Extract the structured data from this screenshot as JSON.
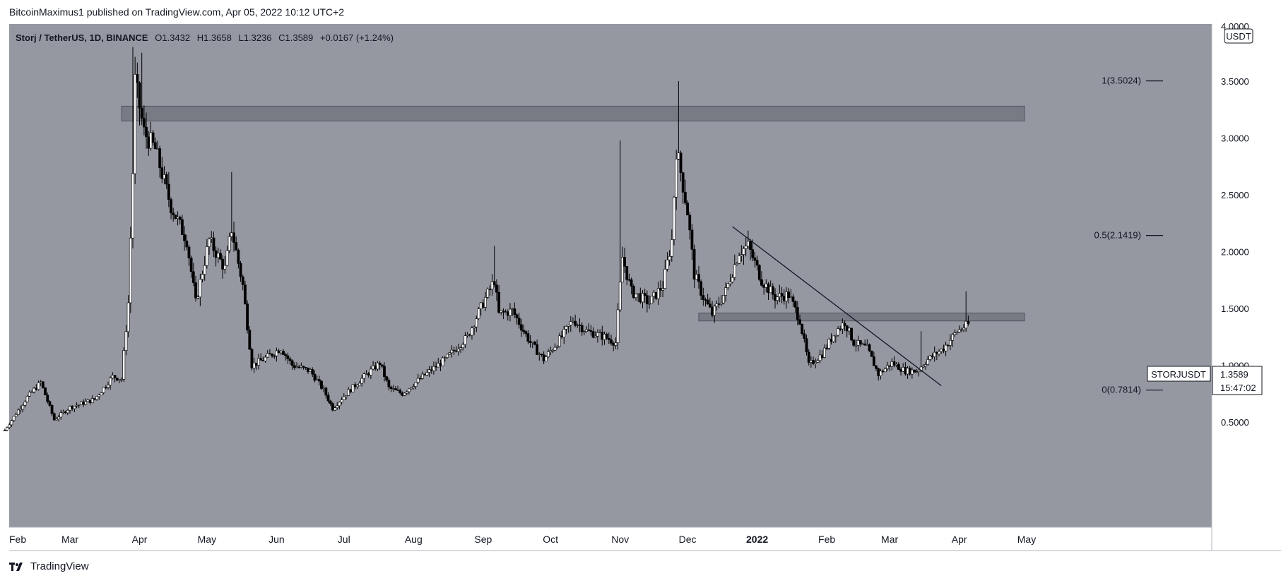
{
  "header": {
    "text": "BitcoinMaximus1 published on TradingView.com, Apr 05, 2022 10:12 UTC+2"
  },
  "ohlc": {
    "symbol": "Storj / TetherUS, 1D, BINANCE",
    "o_label": "O",
    "o": "1.3432",
    "h_label": "H",
    "h": "1.3658",
    "l_label": "L",
    "l": "1.3236",
    "c_label": "C",
    "c": "1.3589",
    "change": "+0.0167 (+1.24%)"
  },
  "currency": "USDT",
  "price_badge": {
    "symbol": "STORJUSDT",
    "price": "1.3589",
    "countdown": "15:47:02"
  },
  "footer": {
    "brand": "TradingView"
  },
  "colors": {
    "background": "#9598a1",
    "candle": "#ffffff",
    "wick": "#000000",
    "zone": "#6f727b"
  },
  "chart_data": {
    "type": "candlestick",
    "y_axis": {
      "min": 0.2,
      "max": 4.0,
      "ticks": [
        "4.0000",
        "3.5000",
        "3.0000",
        "2.5000",
        "2.0000",
        "1.5000",
        "1.0000",
        "0.5000"
      ],
      "position": "right"
    },
    "x_axis": {
      "ticks": [
        {
          "label": "Feb",
          "date": "2021-02-01"
        },
        {
          "label": "Mar",
          "date": "2021-03-01"
        },
        {
          "label": "Apr",
          "date": "2021-04-01"
        },
        {
          "label": "May",
          "date": "2021-05-01"
        },
        {
          "label": "Jun",
          "date": "2021-06-01"
        },
        {
          "label": "Jul",
          "date": "2021-07-01"
        },
        {
          "label": "Aug",
          "date": "2021-08-01"
        },
        {
          "label": "Sep",
          "date": "2021-09-01"
        },
        {
          "label": "Oct",
          "date": "2021-10-01"
        },
        {
          "label": "Nov",
          "date": "2021-11-01"
        },
        {
          "label": "Dec",
          "date": "2021-12-01"
        },
        {
          "label": "2022",
          "date": "2022-01-01"
        },
        {
          "label": "Feb",
          "date": "2022-02-01"
        },
        {
          "label": "Mar",
          "date": "2022-03-01"
        },
        {
          "label": "Apr",
          "date": "2022-04-01"
        },
        {
          "label": "May",
          "date": "2022-05-01"
        }
      ]
    },
    "price_path": [
      [
        "2021-01-31",
        0.43
      ],
      [
        "2021-02-10",
        0.72
      ],
      [
        "2021-02-16",
        0.85
      ],
      [
        "2021-02-22",
        0.52
      ],
      [
        "2021-03-01",
        0.63
      ],
      [
        "2021-03-12",
        0.7
      ],
      [
        "2021-03-20",
        0.9
      ],
      [
        "2021-03-24",
        0.88
      ],
      [
        "2021-03-27",
        1.55
      ],
      [
        "2021-03-29",
        2.7
      ],
      [
        "2021-03-30",
        3.5
      ],
      [
        "2021-04-03",
        3.05
      ],
      [
        "2021-04-08",
        2.9
      ],
      [
        "2021-04-15",
        2.4
      ],
      [
        "2021-04-22",
        2.1
      ],
      [
        "2021-04-26",
        1.55
      ],
      [
        "2021-05-02",
        2.1
      ],
      [
        "2021-05-09",
        1.85
      ],
      [
        "2021-05-12",
        2.2
      ],
      [
        "2021-05-17",
        1.7
      ],
      [
        "2021-05-21",
        1.0
      ],
      [
        "2021-05-26",
        1.05
      ],
      [
        "2021-06-03",
        1.15
      ],
      [
        "2021-06-08",
        1.0
      ],
      [
        "2021-06-16",
        0.95
      ],
      [
        "2021-06-22",
        0.78
      ],
      [
        "2021-06-26",
        0.62
      ],
      [
        "2021-07-02",
        0.75
      ],
      [
        "2021-07-10",
        0.9
      ],
      [
        "2021-07-17",
        1.02
      ],
      [
        "2021-07-21",
        0.8
      ],
      [
        "2021-07-27",
        0.75
      ],
      [
        "2021-08-05",
        0.9
      ],
      [
        "2021-08-15",
        1.05
      ],
      [
        "2021-08-25",
        1.25
      ],
      [
        "2021-09-01",
        1.55
      ],
      [
        "2021-09-06",
        1.75
      ],
      [
        "2021-09-08",
        1.45
      ],
      [
        "2021-09-14",
        1.48
      ],
      [
        "2021-09-22",
        1.2
      ],
      [
        "2021-09-28",
        1.05
      ],
      [
        "2021-10-06",
        1.25
      ],
      [
        "2021-10-11",
        1.4
      ],
      [
        "2021-10-17",
        1.3
      ],
      [
        "2021-10-25",
        1.25
      ],
      [
        "2021-10-30",
        1.2
      ],
      [
        "2021-11-02",
        1.95
      ],
      [
        "2021-11-06",
        1.65
      ],
      [
        "2021-11-14",
        1.55
      ],
      [
        "2021-11-20",
        1.7
      ],
      [
        "2021-11-24",
        2.1
      ],
      [
        "2021-11-26",
        2.9
      ],
      [
        "2021-11-28",
        2.7
      ],
      [
        "2021-12-01",
        2.35
      ],
      [
        "2021-12-04",
        1.8
      ],
      [
        "2021-12-08",
        1.6
      ],
      [
        "2021-12-12",
        1.45
      ],
      [
        "2021-12-18",
        1.65
      ],
      [
        "2021-12-24",
        2.0
      ],
      [
        "2021-12-28",
        2.05
      ],
      [
        "2022-01-03",
        1.75
      ],
      [
        "2022-01-09",
        1.6
      ],
      [
        "2022-01-15",
        1.62
      ],
      [
        "2022-01-20",
        1.4
      ],
      [
        "2022-01-24",
        1.0
      ],
      [
        "2022-01-30",
        1.1
      ],
      [
        "2022-02-05",
        1.3
      ],
      [
        "2022-02-09",
        1.38
      ],
      [
        "2022-02-13",
        1.2
      ],
      [
        "2022-02-19",
        1.15
      ],
      [
        "2022-02-24",
        0.92
      ],
      [
        "2022-03-02",
        1.02
      ],
      [
        "2022-03-08",
        0.95
      ],
      [
        "2022-03-13",
        0.95
      ],
      [
        "2022-03-18",
        1.05
      ],
      [
        "2022-03-25",
        1.15
      ],
      [
        "2022-03-31",
        1.3
      ],
      [
        "2022-04-05",
        1.3589
      ]
    ],
    "wick_highs": [
      [
        "2021-03-29",
        3.8
      ],
      [
        "2021-04-02",
        3.75
      ],
      [
        "2021-05-12",
        2.7
      ],
      [
        "2021-09-06",
        2.05
      ],
      [
        "2021-11-01",
        2.98
      ],
      [
        "2021-11-27",
        3.5
      ],
      [
        "2022-03-15",
        1.3
      ],
      [
        "2022-04-04",
        1.65
      ]
    ],
    "horizontal_zones": [
      {
        "y_top": 3.28,
        "y_bottom": 3.15,
        "x_start": "2021-03-24",
        "x_end": "2022-05-01"
      },
      {
        "y_top": 1.46,
        "y_bottom": 1.39,
        "x_start": "2021-12-06",
        "x_end": "2022-05-01"
      }
    ],
    "trendline": {
      "start": [
        "2021-12-21",
        2.22
      ],
      "end": [
        "2022-03-24",
        0.82
      ]
    },
    "fib_levels": [
      {
        "label": "1(3.5024)",
        "value": 3.5024
      },
      {
        "label": "0.5(2.1419)",
        "value": 2.1419
      },
      {
        "label": "0(0.7814)",
        "value": 0.7814
      }
    ]
  }
}
